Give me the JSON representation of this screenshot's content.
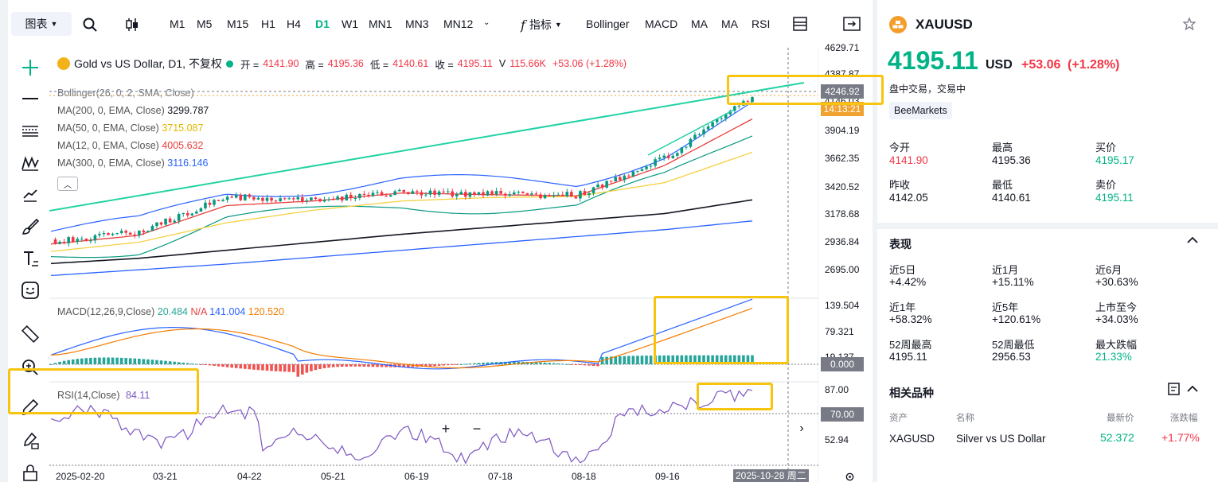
{
  "toolbar": {
    "chart_type": "图表",
    "timeframes": [
      "M1",
      "M5",
      "M15",
      "H1",
      "H4",
      "D1",
      "W1",
      "MN1",
      "MN3",
      "MN12"
    ],
    "active_timeframe": "D1",
    "indicators_label": "指标",
    "indicator_buttons": [
      "Bollinger",
      "MACD",
      "MA",
      "MA",
      "RSI"
    ]
  },
  "legend": {
    "title": "Gold vs US Dollar, D1, 不复权",
    "ohlc": {
      "open_label": "开 =",
      "open": "4141.90",
      "high_label": "高 =",
      "high": "4195.36",
      "low_label": "低 =",
      "low": "4140.61",
      "close_label": "收 =",
      "close": "4195.11",
      "vol_label": "V",
      "volume": "115.66K",
      "change": "+53.06 (+1.28%)"
    },
    "indicators": [
      {
        "label": "Bollinger(26, 0, 2, SMA, Close)",
        "value": "",
        "color": "#787b86"
      },
      {
        "label": "MA(200, 0, EMA, Close)",
        "value": "3299.787",
        "color": "#131722"
      },
      {
        "label": "MA(50, 0, EMA, Close)",
        "value": "3715.087",
        "color": "#f5d142"
      },
      {
        "label": "MA(12, 0, EMA, Close)",
        "value": "4005.632",
        "color": "#e8403e"
      },
      {
        "label": "MA(300, 0, EMA, Close)",
        "value": "3116.146",
        "color": "#2962ff"
      }
    ]
  },
  "price_axis": [
    "4629.71",
    "4387.87",
    "4146.03",
    "3904.19",
    "3662.35",
    "3420.52",
    "3178.68",
    "2936.84",
    "2695.00"
  ],
  "price_tag": {
    "price": "4246.92",
    "countdown": "14:13:21"
  },
  "macd": {
    "label": "MACD(12,26,9,Close)",
    "hist": "20.484",
    "na": "N/A",
    "macd": "141.004",
    "signal": "120.520",
    "axis": [
      "139.504",
      "79.321",
      "19.137"
    ],
    "zero_tag": "0.000"
  },
  "rsi": {
    "label": "RSI(14,Close)",
    "value": "84.11",
    "axis": [
      "87.00",
      "52.94"
    ],
    "level_tag": "70.00"
  },
  "time_axis": [
    "2025-02-20",
    "03-21",
    "04-22",
    "05-21",
    "06-19",
    "07-18",
    "08-18",
    "09-16"
  ],
  "crosshair_date": "2025-10-28 周二",
  "chart_data": {
    "type": "line",
    "title": "Gold vs US Dollar, D1",
    "x": [
      "2025-02-20",
      "03-21",
      "04-22",
      "05-21",
      "06-19",
      "07-18",
      "08-18",
      "09-16",
      "2025-10-28"
    ],
    "series": [
      {
        "name": "Close",
        "values": [
          2935,
          3020,
          3330,
          3300,
          3370,
          3350,
          3340,
          3660,
          4195
        ]
      },
      {
        "name": "MA(12, 0, EMA, Close)",
        "values": [
          2915,
          2990,
          3250,
          3290,
          3360,
          3345,
          3335,
          3600,
          4005
        ]
      },
      {
        "name": "MA(50, 0, EMA, Close)",
        "values": [
          2850,
          2930,
          3100,
          3210,
          3290,
          3320,
          3330,
          3450,
          3715
        ]
      },
      {
        "name": "MA(200, 0, EMA, Close)",
        "values": [
          2745,
          2790,
          2860,
          2930,
          3000,
          3060,
          3120,
          3180,
          3300
        ]
      },
      {
        "name": "MA(300, 0, EMA, Close)",
        "values": [
          2640,
          2690,
          2740,
          2800,
          2860,
          2920,
          2980,
          3040,
          3116
        ]
      }
    ],
    "ylim": [
      2695.0,
      4629.71
    ]
  },
  "quote": {
    "symbol": "XAUUSD",
    "price": "4195.11",
    "currency": "USD",
    "change": "+53.06",
    "change_pct": "(+1.28%)",
    "status": "盘中交易，交易中",
    "broker": "BeeMarkets",
    "stats": [
      {
        "label": "今开",
        "value": "4141.90",
        "color": "#f23645"
      },
      {
        "label": "最高",
        "value": "4195.36",
        "color": "#131722"
      },
      {
        "label": "买价",
        "value": "4195.17",
        "color": "#00b386"
      },
      {
        "label": "昨收",
        "value": "4142.05",
        "color": "#131722"
      },
      {
        "label": "最低",
        "value": "4140.61",
        "color": "#131722"
      },
      {
        "label": "卖价",
        "value": "4195.11",
        "color": "#00b386"
      }
    ]
  },
  "performance": {
    "title": "表现",
    "items": [
      {
        "label": "近5日",
        "value": "+4.42%"
      },
      {
        "label": "近1月",
        "value": "+15.11%"
      },
      {
        "label": "近6月",
        "value": "+30.63%"
      },
      {
        "label": "近1年",
        "value": "+58.32%"
      },
      {
        "label": "近5年",
        "value": "+120.61%"
      },
      {
        "label": "上市至今",
        "value": "+34.03%"
      },
      {
        "label": "52周最高",
        "value": "4195.11"
      },
      {
        "label": "52周最低",
        "value": "2956.53"
      },
      {
        "label": "最大跌幅",
        "value": "21.33%"
      }
    ]
  },
  "related": {
    "title": "相关品种",
    "headers": [
      "资产",
      "名称",
      "最新价",
      "涨跌幅"
    ],
    "rows": [
      {
        "asset": "XAGUSD",
        "name": "Silver vs US Dollar",
        "last": "52.372",
        "change": "+1.77%"
      }
    ]
  }
}
